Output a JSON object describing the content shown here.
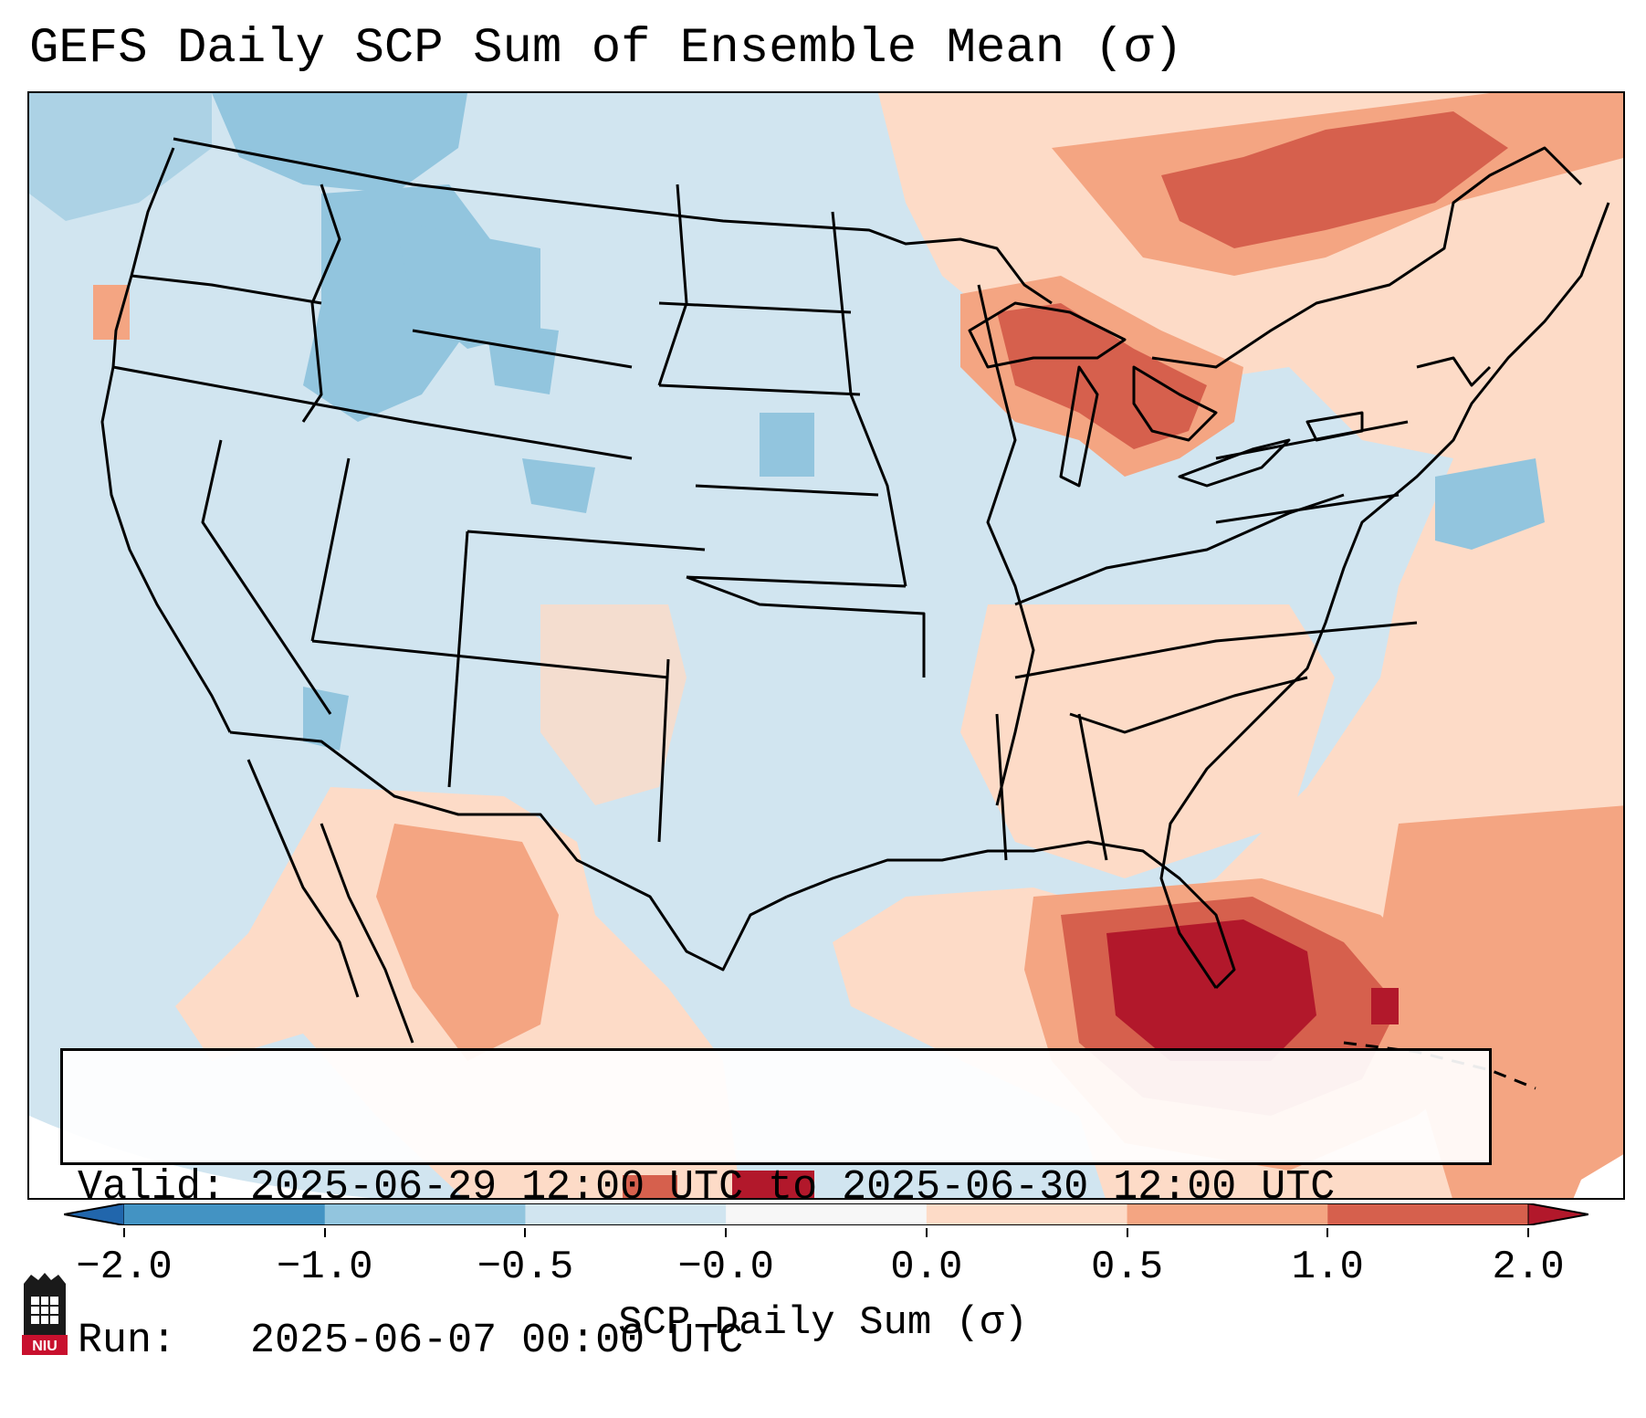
{
  "title": "GEFS Daily SCP Sum of Ensemble Mean (σ)",
  "info": {
    "valid_label": "Valid:",
    "valid_value": "2025-06-29 12:00 UTC to 2025-06-30 12:00 UTC",
    "run_label": "Run:",
    "run_value": "2025-06-07 00:00 UTC"
  },
  "colorbar": {
    "label": "SCP Daily Sum (σ)",
    "ticks": [
      "−2.0",
      "−1.0",
      "−0.5",
      "−0.0",
      "0.0",
      "0.5",
      "1.0",
      "2.0"
    ],
    "bins": [
      {
        "from": -2.0,
        "to": -1.0,
        "color": "#4393c3"
      },
      {
        "from": -1.0,
        "to": -0.5,
        "color": "#92c5de"
      },
      {
        "from": -0.5,
        "to": 0.0,
        "color": "#d1e5f0"
      },
      {
        "from": 0.0,
        "to": 0.0,
        "color": "#f7f7f7"
      },
      {
        "from": 0.0,
        "to": 0.5,
        "color": "#fddbc7"
      },
      {
        "from": 0.5,
        "to": 1.0,
        "color": "#f4a582"
      },
      {
        "from": 1.0,
        "to": 2.0,
        "color": "#d6604d"
      }
    ],
    "under_color": "#2166ac",
    "over_color": "#b2182b"
  },
  "map": {
    "projection": "Lambert Conformal",
    "region": "Contiguous United States",
    "field_colors": {
      "strong_negative": "#92c5de",
      "weak_negative": "#d1e5f0",
      "weak_positive": "#fddbc7",
      "moderate_positive": "#f4a582",
      "strong_positive": "#d6604d",
      "extreme_positive": "#b2182b"
    }
  },
  "logo": {
    "text": "NIU",
    "color": "#c8102e"
  }
}
